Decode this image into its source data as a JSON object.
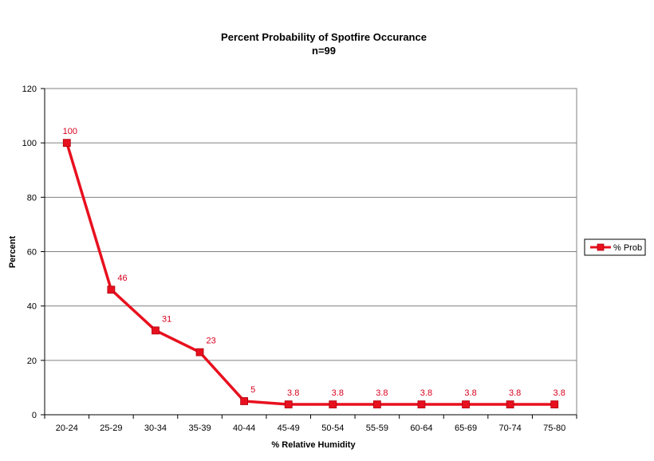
{
  "chart_data": {
    "type": "line",
    "title": "Percent Probability of Spotfire Occurance",
    "subtitle": "n=99",
    "xlabel": "% Relative Humidity",
    "ylabel": "Percent",
    "categories": [
      "20-24",
      "25-29",
      "30-34",
      "35-39",
      "40-44",
      "45-49",
      "50-54",
      "55-59",
      "60-64",
      "65-69",
      "70-74",
      "75-80"
    ],
    "series": [
      {
        "name": "% Prob",
        "values": [
          100,
          46,
          31,
          23,
          5,
          3.8,
          3.8,
          3.8,
          3.8,
          3.8,
          3.8,
          3.8
        ],
        "data_labels": [
          "100",
          "46",
          "31",
          "23",
          "5",
          "3.8",
          "3.8",
          "3.8",
          "3.8",
          "3.8",
          "3.8",
          "3.8"
        ],
        "color": "#e8101e",
        "marker": "square"
      }
    ],
    "ylim": [
      0,
      120
    ],
    "yticks": [
      0,
      20,
      40,
      60,
      80,
      100,
      120
    ],
    "ytick_labels": [
      "0",
      "20",
      "40",
      "60",
      "80",
      "100",
      "120"
    ],
    "grid": true,
    "legend_position": "right",
    "colors": {
      "series": "#e8101e",
      "data_label": "#d8001e",
      "grid": "#808080",
      "axis": "#000000"
    }
  }
}
